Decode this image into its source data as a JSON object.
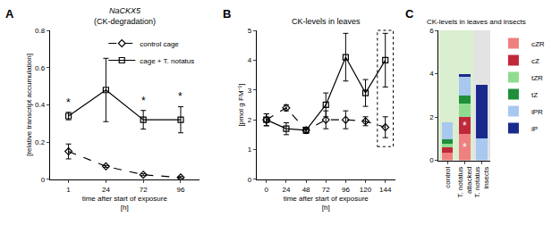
{
  "chart_data": [
    {
      "panel": "A",
      "type": "line",
      "title": "NaCKX5",
      "subtitle": "(CK-degradation)",
      "x_label": "time after start of exposure [h]",
      "y_label": "[relative transcript accumulation]",
      "categories": [
        "1",
        "24",
        "72",
        "96"
      ],
      "ylim": [
        0,
        0.8
      ],
      "yticks": [
        0,
        0.2,
        0.4,
        0.6,
        0.8
      ],
      "grid": false,
      "legend": "upper right",
      "series": [
        {
          "name": "control cage",
          "color": "#000000",
          "marker": "diamond-open",
          "line_style": "dash",
          "values": [
            0.15,
            0.07,
            0.025,
            0.01
          ],
          "errors": [
            0.04,
            0.005,
            0.005,
            0.005
          ]
        },
        {
          "name": "cage + T. notatus",
          "color": "#000000",
          "marker": "square-open",
          "line_style": "solid",
          "values": [
            0.34,
            0.48,
            0.32,
            0.32
          ],
          "errors": [
            0.02,
            0.17,
            0.05,
            0.07
          ]
        }
      ],
      "annotations": [
        {
          "x": "1",
          "y": 0.37,
          "text": "*"
        },
        {
          "x": "72",
          "y": 0.38,
          "text": "*"
        },
        {
          "x": "96",
          "y": 0.4,
          "text": "*"
        }
      ]
    },
    {
      "panel": "B",
      "type": "line",
      "title": "CK-levels in leaves",
      "x_label": "time after start of exposure [h]",
      "y_label": "[pmol g FM⁻¹]",
      "categories": [
        "0",
        "24",
        "48",
        "72",
        "96",
        "120",
        "144"
      ],
      "ylim": [
        0,
        5
      ],
      "yticks": [
        0,
        1,
        2,
        3,
        4,
        5
      ],
      "grid": false,
      "series": [
        {
          "name": "control cage",
          "color": "#000000",
          "marker": "diamond-open",
          "line_style": "dash",
          "values": [
            2.0,
            2.4,
            1.65,
            2.0,
            2.0,
            1.95,
            1.75
          ],
          "errors": [
            0.2,
            0.1,
            0.1,
            0.3,
            0.3,
            0.15,
            0.35
          ]
        },
        {
          "name": "cage + T. notatus",
          "color": "#000000",
          "marker": "square-open",
          "line_style": "solid",
          "values": [
            2.0,
            1.7,
            1.65,
            2.5,
            4.1,
            2.9,
            4.0
          ],
          "errors": [
            0.2,
            0.2,
            0.1,
            0.4,
            0.8,
            0.45,
            0.9
          ]
        }
      ]
    },
    {
      "panel": "C",
      "type": "bar",
      "title": "CK-levels in leaves and insects",
      "stacked": true,
      "categories": [
        "control",
        "T. notatus attacked",
        "T. notatus insects"
      ],
      "ylim": [
        0,
        6
      ],
      "yticks": [
        0,
        2,
        4,
        6
      ],
      "grid": false,
      "legend": "right",
      "series": [
        {
          "name": "cZR",
          "color": "#f08080",
          "values": [
            0.35,
            1.2,
            0
          ]
        },
        {
          "name": "cZ",
          "color": "#c0283c",
          "values": [
            0.25,
            0.8,
            0
          ]
        },
        {
          "name": "tZR",
          "color": "#8fdc8f",
          "values": [
            0.15,
            0.6,
            0
          ]
        },
        {
          "name": "tZ",
          "color": "#1f8f3a",
          "values": [
            0.2,
            0.4,
            0
          ]
        },
        {
          "name": "iPR",
          "color": "#a8c8f0",
          "values": [
            0.8,
            0.85,
            1.0
          ]
        },
        {
          "name": "iP",
          "color": "#1a2a8c",
          "values": [
            0,
            0.15,
            2.5
          ]
        }
      ],
      "annotations": [
        {
          "x": "T. notatus attacked",
          "y": 0.6,
          "text": "*"
        },
        {
          "x": "T. notatus attacked",
          "y": 1.6,
          "text": "*"
        }
      ]
    }
  ]
}
